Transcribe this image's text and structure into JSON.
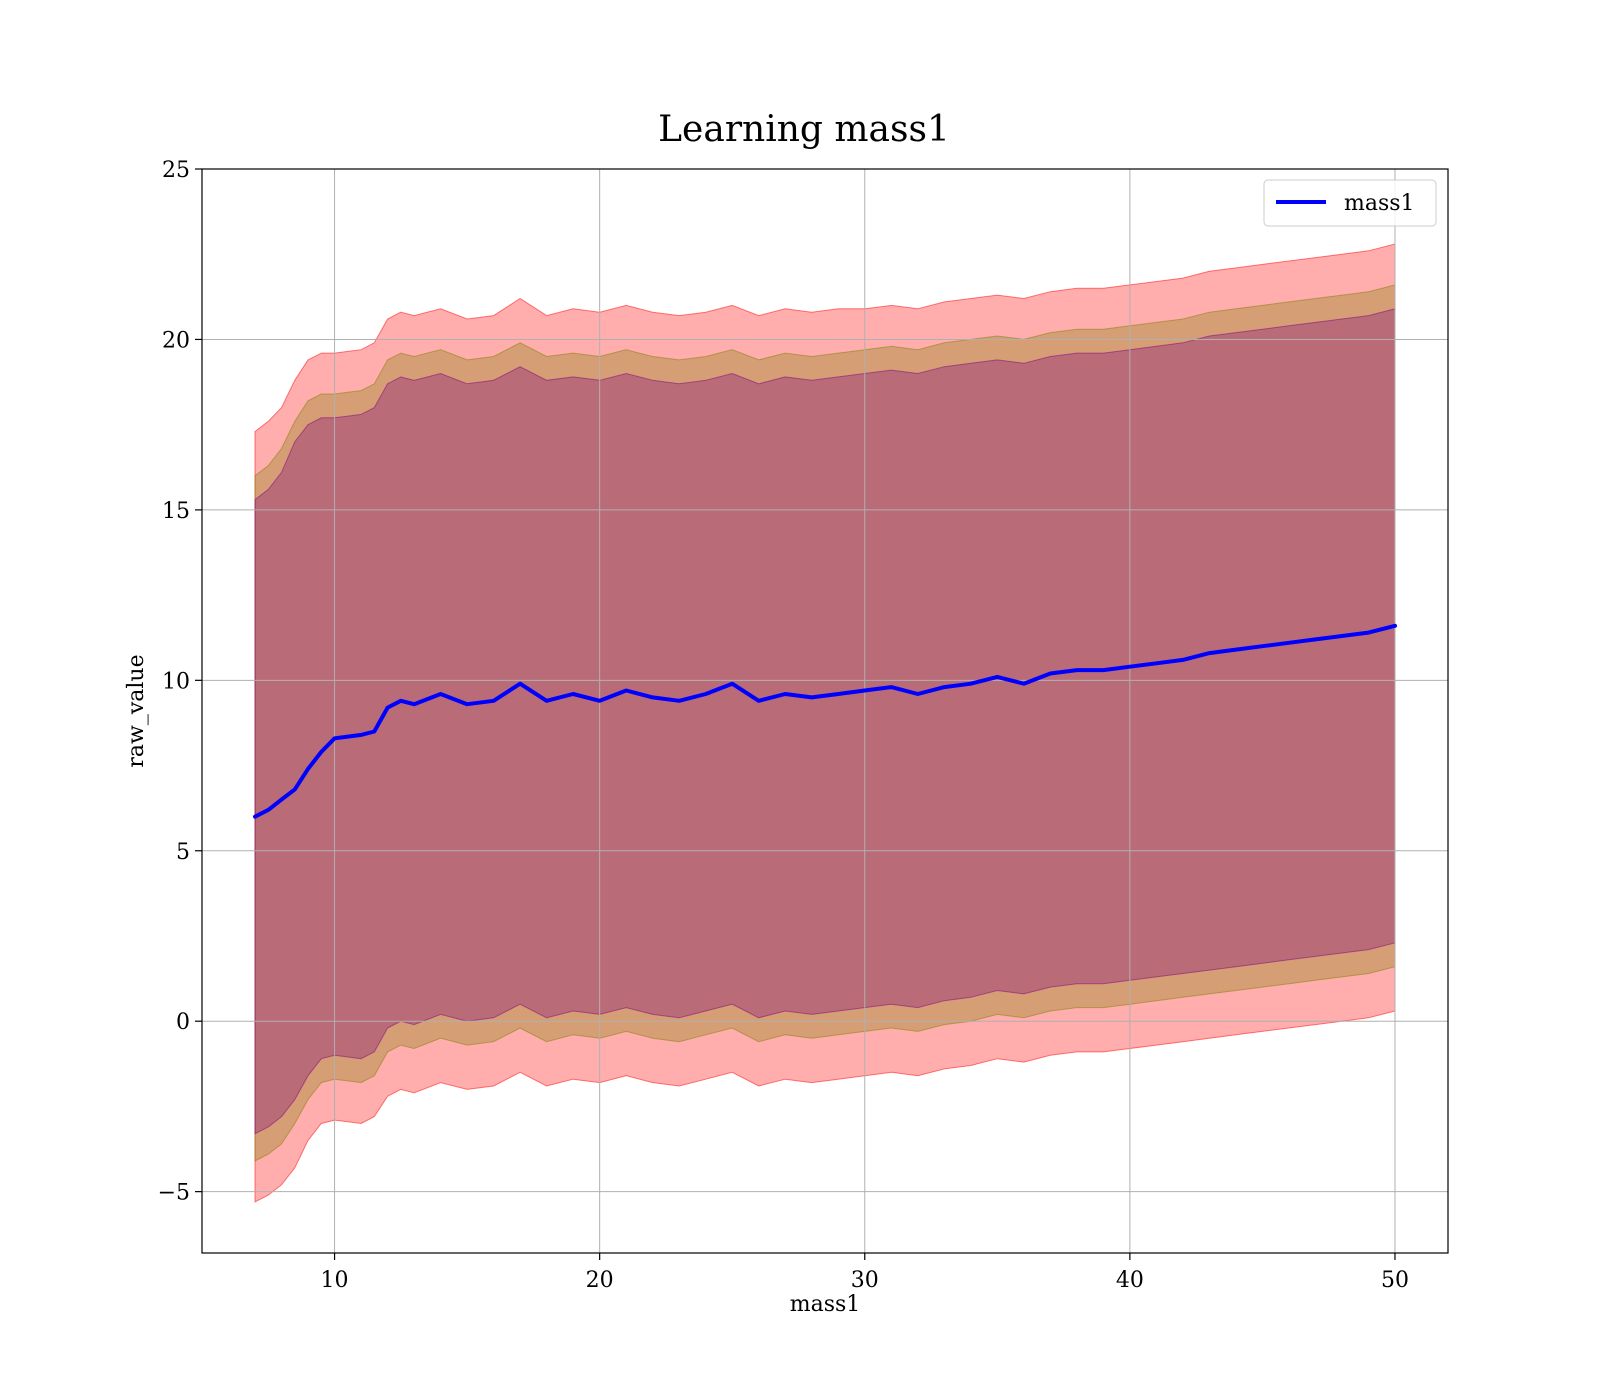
{
  "chart_data": {
    "type": "line",
    "title": "Learning mass1",
    "xlabel": "mass1",
    "ylabel": "raw_value",
    "xlim": [
      5,
      52
    ],
    "ylim": [
      -6.8,
      25
    ],
    "x_ticks": [
      10,
      20,
      30,
      40,
      50
    ],
    "x_tick_labels": [
      "10",
      "20",
      "30",
      "40",
      "50"
    ],
    "y_ticks": [
      -5,
      0,
      5,
      10,
      15,
      20,
      25
    ],
    "y_tick_labels": [
      "−5",
      "0",
      "5",
      "10",
      "15",
      "20",
      "25"
    ],
    "grid": true,
    "legend": {
      "position": "top-right",
      "entries": [
        "mass1"
      ]
    },
    "colors": {
      "line": "#0000ff",
      "outer_band": "#ff0000",
      "middle_band": "#808000",
      "inner_band": "#800080",
      "grid": "#b0b0b0"
    },
    "x": [
      7.0,
      7.5,
      8.0,
      8.5,
      9.0,
      9.5,
      10.0,
      10.5,
      11.0,
      11.5,
      12.0,
      12.5,
      13.0,
      14.0,
      15.0,
      16.0,
      17.0,
      18.0,
      19.0,
      20.0,
      21.0,
      22.0,
      23.0,
      24.0,
      25.0,
      26.0,
      27.0,
      28.0,
      29.0,
      30.0,
      31.0,
      32.0,
      33.0,
      34.0,
      35.0,
      36.0,
      37.0,
      38.0,
      39.0,
      40.0,
      41.0,
      42.0,
      43.0,
      44.0,
      45.0,
      46.0,
      47.0,
      48.0,
      49.0,
      50.0
    ],
    "series": [
      {
        "name": "mass1",
        "kind": "line",
        "values": [
          6.0,
          6.2,
          6.5,
          6.8,
          7.4,
          7.9,
          8.3,
          8.35,
          8.4,
          8.5,
          9.2,
          9.4,
          9.3,
          9.6,
          9.3,
          9.4,
          9.9,
          9.4,
          9.6,
          9.4,
          9.7,
          9.5,
          9.4,
          9.6,
          9.9,
          9.4,
          9.6,
          9.5,
          9.6,
          9.7,
          9.8,
          9.6,
          9.8,
          9.9,
          10.1,
          9.9,
          10.2,
          10.3,
          10.3,
          10.4,
          10.5,
          10.6,
          10.8,
          10.9,
          11.0,
          11.1,
          11.2,
          11.3,
          11.4,
          11.6
        ]
      },
      {
        "kind": "band",
        "level": "outer",
        "upper": [
          17.3,
          17.6,
          18.0,
          18.8,
          19.4,
          19.6,
          19.6,
          19.65,
          19.7,
          19.9,
          20.6,
          20.8,
          20.7,
          20.9,
          20.6,
          20.7,
          21.2,
          20.7,
          20.9,
          20.8,
          21.0,
          20.8,
          20.7,
          20.8,
          21.0,
          20.7,
          20.9,
          20.8,
          20.9,
          20.9,
          21.0,
          20.9,
          21.1,
          21.2,
          21.3,
          21.2,
          21.4,
          21.5,
          21.5,
          21.6,
          21.7,
          21.8,
          22.0,
          22.1,
          22.2,
          22.3,
          22.4,
          22.5,
          22.6,
          22.8
        ],
        "lower": [
          -5.3,
          -5.1,
          -4.8,
          -4.3,
          -3.5,
          -3.0,
          -2.9,
          -2.95,
          -3.0,
          -2.8,
          -2.2,
          -2.0,
          -2.1,
          -1.8,
          -2.0,
          -1.9,
          -1.5,
          -1.9,
          -1.7,
          -1.8,
          -1.6,
          -1.8,
          -1.9,
          -1.7,
          -1.5,
          -1.9,
          -1.7,
          -1.8,
          -1.7,
          -1.6,
          -1.5,
          -1.6,
          -1.4,
          -1.3,
          -1.1,
          -1.2,
          -1.0,
          -0.9,
          -0.9,
          -0.8,
          -0.7,
          -0.6,
          -0.5,
          -0.4,
          -0.3,
          -0.2,
          -0.1,
          0.0,
          0.1,
          0.3
        ]
      },
      {
        "kind": "band",
        "level": "middle",
        "upper": [
          16.0,
          16.3,
          16.8,
          17.6,
          18.2,
          18.4,
          18.4,
          18.45,
          18.5,
          18.7,
          19.4,
          19.6,
          19.5,
          19.7,
          19.4,
          19.5,
          19.9,
          19.5,
          19.6,
          19.5,
          19.7,
          19.5,
          19.4,
          19.5,
          19.7,
          19.4,
          19.6,
          19.5,
          19.6,
          19.7,
          19.8,
          19.7,
          19.9,
          20.0,
          20.1,
          20.0,
          20.2,
          20.3,
          20.3,
          20.4,
          20.5,
          20.6,
          20.8,
          20.9,
          21.0,
          21.1,
          21.2,
          21.3,
          21.4,
          21.6
        ],
        "lower": [
          -4.1,
          -3.9,
          -3.6,
          -3.0,
          -2.3,
          -1.8,
          -1.7,
          -1.75,
          -1.8,
          -1.6,
          -0.9,
          -0.7,
          -0.8,
          -0.5,
          -0.7,
          -0.6,
          -0.2,
          -0.6,
          -0.4,
          -0.5,
          -0.3,
          -0.5,
          -0.6,
          -0.4,
          -0.2,
          -0.6,
          -0.4,
          -0.5,
          -0.4,
          -0.3,
          -0.2,
          -0.3,
          -0.1,
          0.0,
          0.2,
          0.1,
          0.3,
          0.4,
          0.4,
          0.5,
          0.6,
          0.7,
          0.8,
          0.9,
          1.0,
          1.1,
          1.2,
          1.3,
          1.4,
          1.6
        ]
      },
      {
        "kind": "band",
        "level": "inner",
        "upper": [
          15.3,
          15.6,
          16.1,
          17.0,
          17.5,
          17.7,
          17.7,
          17.75,
          17.8,
          18.0,
          18.7,
          18.9,
          18.8,
          19.0,
          18.7,
          18.8,
          19.2,
          18.8,
          18.9,
          18.8,
          19.0,
          18.8,
          18.7,
          18.8,
          19.0,
          18.7,
          18.9,
          18.8,
          18.9,
          19.0,
          19.1,
          19.0,
          19.2,
          19.3,
          19.4,
          19.3,
          19.5,
          19.6,
          19.6,
          19.7,
          19.8,
          19.9,
          20.1,
          20.2,
          20.3,
          20.4,
          20.5,
          20.6,
          20.7,
          20.9
        ],
        "lower": [
          -3.3,
          -3.1,
          -2.8,
          -2.3,
          -1.6,
          -1.1,
          -1.0,
          -1.05,
          -1.1,
          -0.9,
          -0.2,
          0.0,
          -0.1,
          0.2,
          0.0,
          0.1,
          0.5,
          0.1,
          0.3,
          0.2,
          0.4,
          0.2,
          0.1,
          0.3,
          0.5,
          0.1,
          0.3,
          0.2,
          0.3,
          0.4,
          0.5,
          0.4,
          0.6,
          0.7,
          0.9,
          0.8,
          1.0,
          1.1,
          1.1,
          1.2,
          1.3,
          1.4,
          1.5,
          1.6,
          1.7,
          1.8,
          1.9,
          2.0,
          2.1,
          2.3
        ]
      }
    ]
  }
}
